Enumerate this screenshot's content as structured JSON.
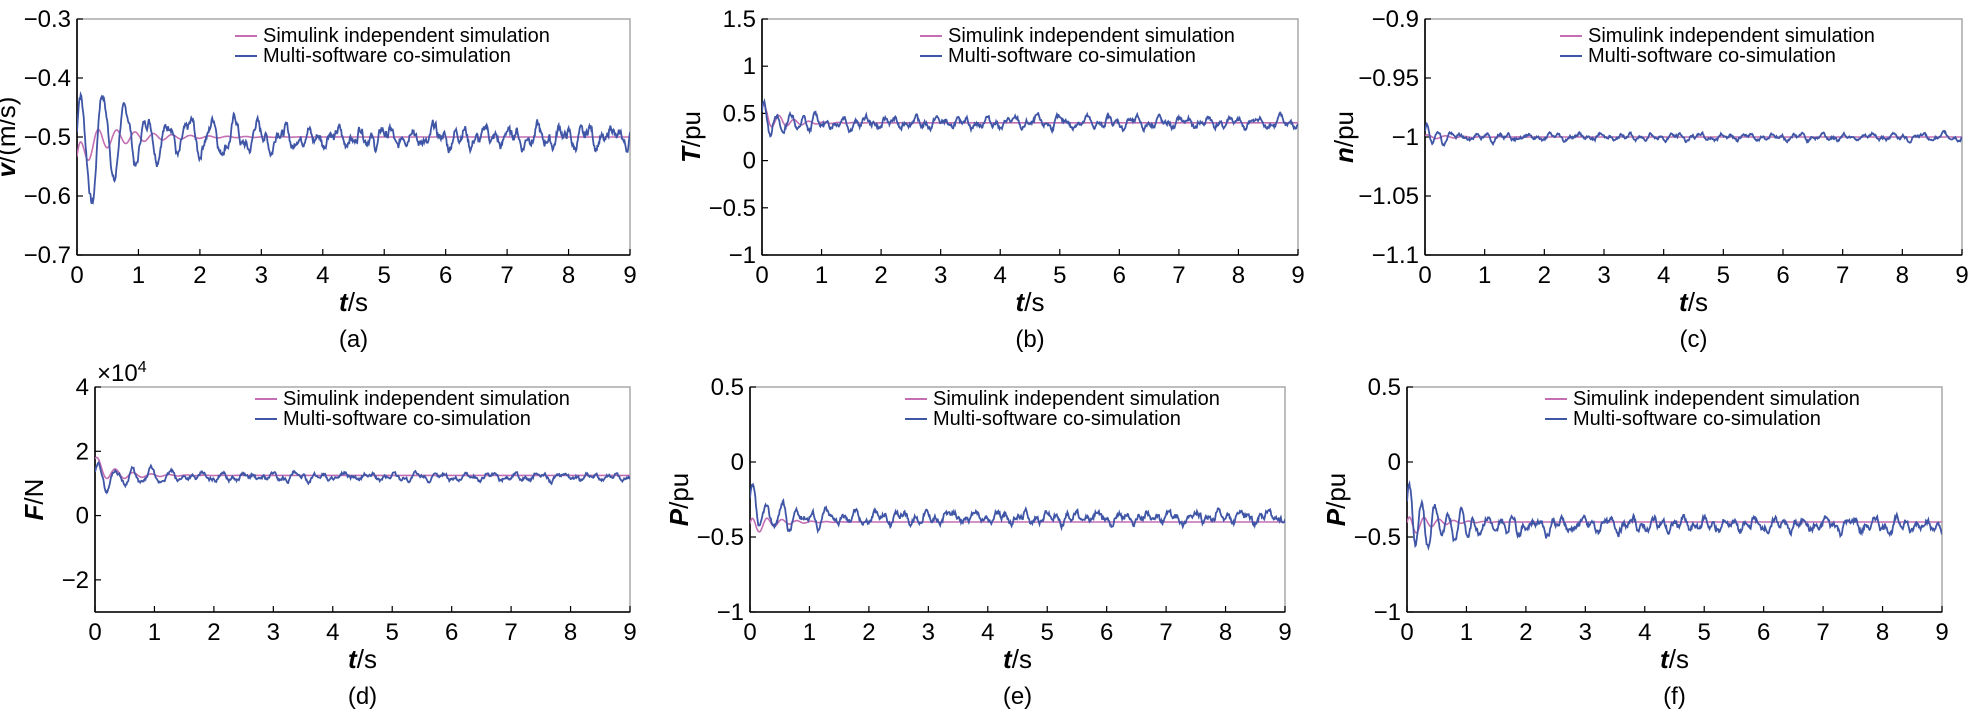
{
  "colors": {
    "simulink": "#c46fb4",
    "cosim": "#3f55a6"
  },
  "legend": {
    "simulink": "Simulink independent simulation",
    "cosim": "Multi-software co-simulation"
  },
  "chart_data": [
    {
      "id": "a",
      "type": "line",
      "caption": "(a)",
      "xlabel": {
        "var": "t",
        "unit": "/s"
      },
      "ylabel": {
        "var": "v",
        "unit": "/(m/s)"
      },
      "xlim": [
        0,
        9
      ],
      "ylim": [
        -0.7,
        -0.3
      ],
      "xticks": [
        "0",
        "1",
        "2",
        "3",
        "4",
        "5",
        "6",
        "7",
        "8",
        "9"
      ],
      "yticks": [
        -0.7,
        -0.6,
        -0.5,
        -0.4,
        -0.3
      ],
      "ytick_labels": [
        "−0.7",
        "−0.6",
        "−0.5",
        "−0.4",
        "−0.3"
      ],
      "multiplier": "",
      "series": [
        {
          "name": "Simulink independent simulation",
          "steady": -0.5,
          "start": -0.55,
          "amp": 0.03,
          "decay": 1.3,
          "period": 0.3,
          "noise": 0.0,
          "seed": 3
        },
        {
          "name": "Multi-software co-simulation",
          "steady": -0.5,
          "start": -0.56,
          "amp": 0.11,
          "decay": 0.8,
          "period": 0.36,
          "noise": 0.015,
          "seed": 7
        }
      ]
    },
    {
      "id": "b",
      "type": "line",
      "caption": "(b)",
      "xlabel": {
        "var": "t",
        "unit": "/s"
      },
      "ylabel": {
        "var": "T",
        "unit": "/pu"
      },
      "xlim": [
        0,
        9
      ],
      "ylim": [
        -1,
        1.5
      ],
      "xticks": [
        "0",
        "1",
        "2",
        "3",
        "4",
        "5",
        "6",
        "7",
        "8",
        "9"
      ],
      "yticks": [
        -1,
        -0.5,
        0,
        0.5,
        1,
        1.5
      ],
      "ytick_labels": [
        "−1",
        "−0.5",
        "0",
        "0.5",
        "1",
        "1.5"
      ],
      "multiplier": "",
      "series": [
        {
          "name": "Simulink independent simulation",
          "steady": 0.4,
          "start": 0.5,
          "amp": 0.12,
          "decay": 2.5,
          "period": 0.25,
          "noise": 0.0,
          "seed": 11
        },
        {
          "name": "Multi-software co-simulation",
          "steady": 0.4,
          "start": 0.4,
          "amp": 0.18,
          "decay": 1.6,
          "period": 0.22,
          "noise": 0.05,
          "seed": 13
        }
      ]
    },
    {
      "id": "c",
      "type": "line",
      "caption": "(c)",
      "xlabel": {
        "var": "t",
        "unit": "/s"
      },
      "ylabel": {
        "var": "n",
        "unit": "/pu"
      },
      "xlim": [
        0,
        9
      ],
      "ylim": [
        -1.1,
        -0.9
      ],
      "xticks": [
        "0",
        "1",
        "2",
        "3",
        "4",
        "5",
        "6",
        "7",
        "8",
        "9"
      ],
      "yticks": [
        -1.1,
        -1.05,
        -1,
        -0.95,
        -0.9
      ],
      "ytick_labels": [
        "−1.1",
        "−1.05",
        "−1",
        "−0.95",
        "−0.9"
      ],
      "multiplier": "",
      "series": [
        {
          "name": "Simulink independent simulation",
          "steady": -1.0,
          "start": -1.0,
          "amp": 0.002,
          "decay": 2.0,
          "period": 0.3,
          "noise": 0.0,
          "seed": 17
        },
        {
          "name": "Multi-software co-simulation",
          "steady": -1.0,
          "start": -1.0,
          "amp": 0.008,
          "decay": 2.0,
          "period": 0.2,
          "noise": 0.0025,
          "seed": 19
        }
      ]
    },
    {
      "id": "d",
      "type": "line",
      "caption": "(d)",
      "xlabel": {
        "var": "t",
        "unit": "/s"
      },
      "ylabel": {
        "var": "F",
        "unit": "/N"
      },
      "xlim": [
        0,
        9
      ],
      "ylim": [
        -3,
        4
      ],
      "xticks": [
        "0",
        "1",
        "2",
        "3",
        "4",
        "5",
        "6",
        "7",
        "8",
        "9"
      ],
      "yticks": [
        -2,
        0,
        2,
        4
      ],
      "ytick_labels": [
        "−2",
        "0",
        "2",
        "4"
      ],
      "multiplier": "×10",
      "multiplier_exp": "4",
      "series": [
        {
          "name": "Simulink independent simulation",
          "steady": 1.25,
          "start": 1.6,
          "amp": 0.3,
          "decay": 2.0,
          "period": 0.3,
          "noise": 0.0,
          "seed": 23
        },
        {
          "name": "Multi-software co-simulation",
          "steady": 1.2,
          "start": 1.1,
          "amp": 0.45,
          "decay": 1.0,
          "period": 0.3,
          "noise": 0.1,
          "seed": 29
        }
      ]
    },
    {
      "id": "e",
      "type": "line",
      "caption": "(e)",
      "xlabel": {
        "var": "t",
        "unit": "/s"
      },
      "ylabel": {
        "var": "P",
        "unit": "/pu"
      },
      "xlim": [
        0,
        9
      ],
      "ylim": [
        -1,
        0.5
      ],
      "xticks": [
        "0",
        "1",
        "2",
        "3",
        "4",
        "5",
        "6",
        "7",
        "8",
        "9"
      ],
      "yticks": [
        -1,
        -0.5,
        0,
        0.5
      ],
      "ytick_labels": [
        "−1",
        "−0.5",
        "0",
        "0.5"
      ],
      "multiplier": "",
      "series": [
        {
          "name": "Simulink independent simulation",
          "steady": -0.4,
          "start": -0.45,
          "amp": 0.07,
          "decay": 2.5,
          "period": 0.25,
          "noise": 0.0,
          "seed": 31
        },
        {
          "name": "Multi-software co-simulation",
          "steady": -0.37,
          "start": -0.3,
          "amp": 0.12,
          "decay": 1.2,
          "period": 0.25,
          "noise": 0.035,
          "seed": 37
        }
      ]
    },
    {
      "id": "f",
      "type": "line",
      "caption": "(f)",
      "xlabel": {
        "var": "t",
        "unit": "/s"
      },
      "ylabel": {
        "var": "P",
        "unit": "/pu"
      },
      "xlim": [
        0,
        9
      ],
      "ylim": [
        -1,
        0.5
      ],
      "xticks": [
        "0",
        "1",
        "2",
        "3",
        "4",
        "5",
        "6",
        "7",
        "8",
        "9"
      ],
      "yticks": [
        -1,
        -0.5,
        0,
        0.5
      ],
      "ytick_labels": [
        "−1",
        "−0.5",
        "0",
        "0.5"
      ],
      "multiplier": "",
      "series": [
        {
          "name": "Simulink independent simulation",
          "steady": -0.4,
          "start": -0.45,
          "amp": 0.08,
          "decay": 2.5,
          "period": 0.25,
          "noise": 0.0,
          "seed": 41
        },
        {
          "name": "Multi-software co-simulation",
          "steady": -0.42,
          "start": -0.35,
          "amp": 0.18,
          "decay": 1.0,
          "period": 0.22,
          "noise": 0.04,
          "seed": 43
        }
      ]
    }
  ]
}
